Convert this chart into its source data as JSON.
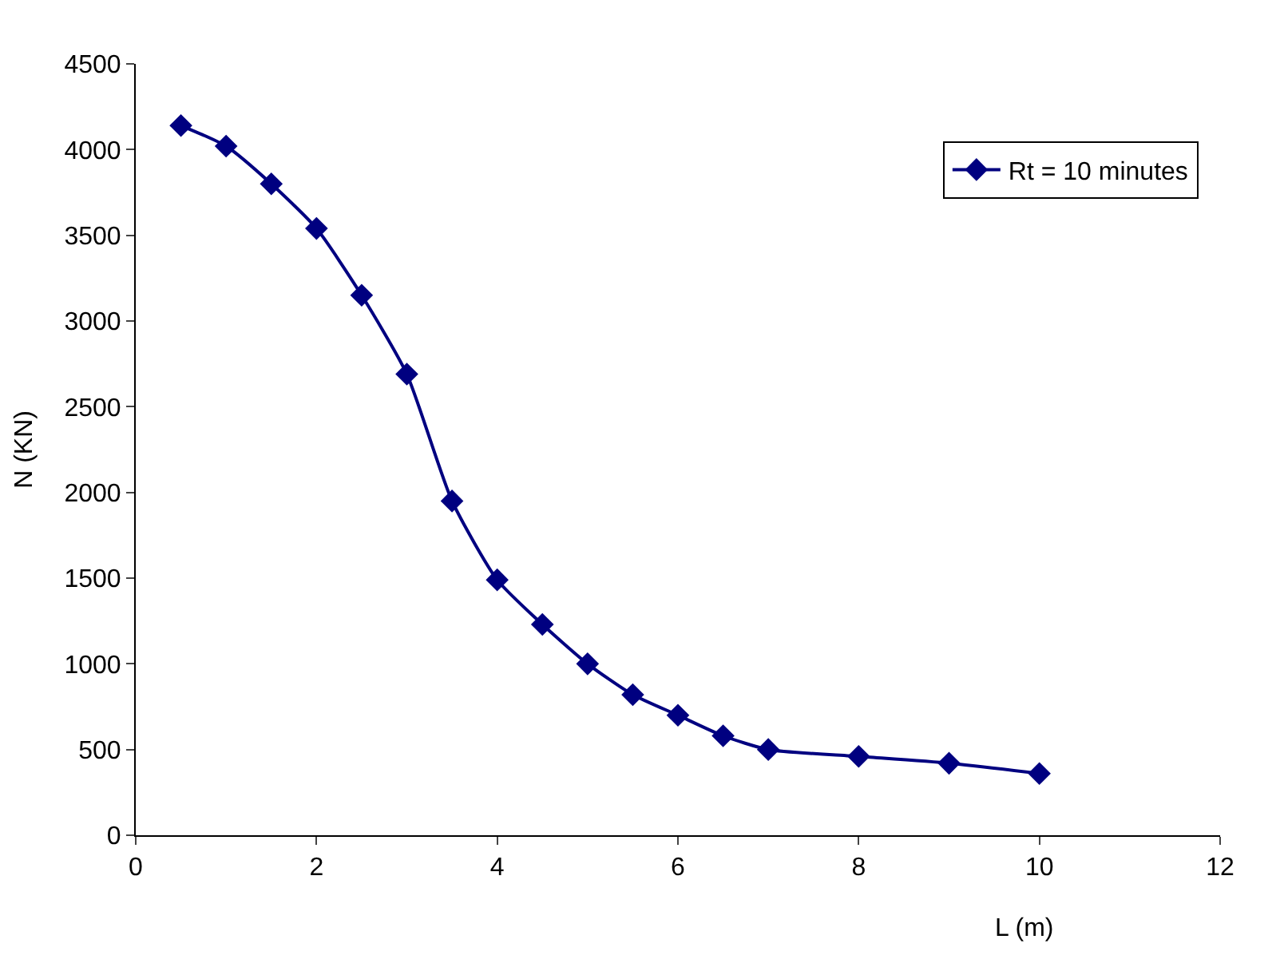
{
  "chart_data": {
    "type": "line",
    "xlabel": "L (m)",
    "ylabel": "N (KN)",
    "x": [
      0.5,
      1,
      1.5,
      2,
      2.5,
      3,
      3.5,
      4,
      4.5,
      5,
      5.5,
      6,
      6.5,
      7,
      8,
      9,
      10
    ],
    "series": [
      {
        "name": "Rt = 10 minutes",
        "color": "#000080",
        "values": [
          4140,
          4020,
          3800,
          3540,
          3150,
          2690,
          1950,
          1490,
          1230,
          1000,
          820,
          700,
          580,
          500,
          460,
          420,
          360
        ]
      }
    ],
    "xlim": [
      0,
      12
    ],
    "xticks": [
      0,
      2,
      4,
      6,
      8,
      10,
      12
    ],
    "ylim": [
      0,
      4500
    ],
    "yticks": [
      0,
      500,
      1000,
      1500,
      2000,
      2500,
      3000,
      3500,
      4000,
      4500
    ],
    "legend": "top right",
    "marker": "diamond",
    "line_style": "solid"
  }
}
